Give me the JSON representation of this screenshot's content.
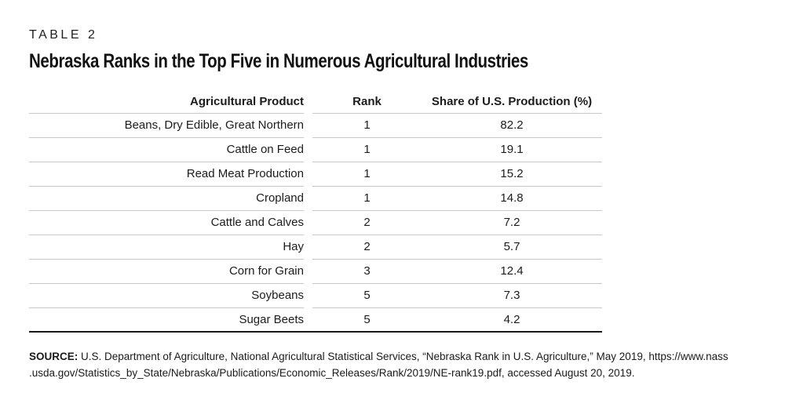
{
  "page": {
    "label": "TABLE 2",
    "title": "Nebraska Ranks in the Top Five in Numerous Agricultural Industries"
  },
  "table": {
    "columns": {
      "product": "Agricultural Product",
      "rank": "Rank",
      "share": "Share of U.S. Production (%)"
    },
    "rows": [
      {
        "product": "Beans, Dry Edible, Great Northern",
        "rank": "1",
        "share": "82.2"
      },
      {
        "product": "Cattle on Feed",
        "rank": "1",
        "share": "19.1"
      },
      {
        "product": "Read Meat Production",
        "rank": "1",
        "share": "15.2"
      },
      {
        "product": "Cropland",
        "rank": "1",
        "share": "14.8"
      },
      {
        "product": "Cattle and Calves",
        "rank": "2",
        "share": "7.2"
      },
      {
        "product": "Hay",
        "rank": "2",
        "share": "5.7"
      },
      {
        "product": "Corn for Grain",
        "rank": "3",
        "share": "12.4"
      },
      {
        "product": "Soybeans",
        "rank": "5",
        "share": "7.3"
      },
      {
        "product": "Sugar Beets",
        "rank": "5",
        "share": "4.2"
      }
    ]
  },
  "source": {
    "label": "SOURCE:",
    "lines": [
      "U.S. Department of Agriculture, National Agricultural Statistical Services, “Nebraska Rank in U.S. Agriculture,” May 2019, https://www.nass",
      ".usda.gov/Statistics_by_State/Nebraska/Publications/Economic_Releases/Rank/2019/NE-rank19.pdf, accessed August 20, 2019."
    ]
  },
  "colors": {
    "text": "#1a1a1a",
    "row_line": "#c8c8c8",
    "bottom_border": "#1a1a1a"
  }
}
